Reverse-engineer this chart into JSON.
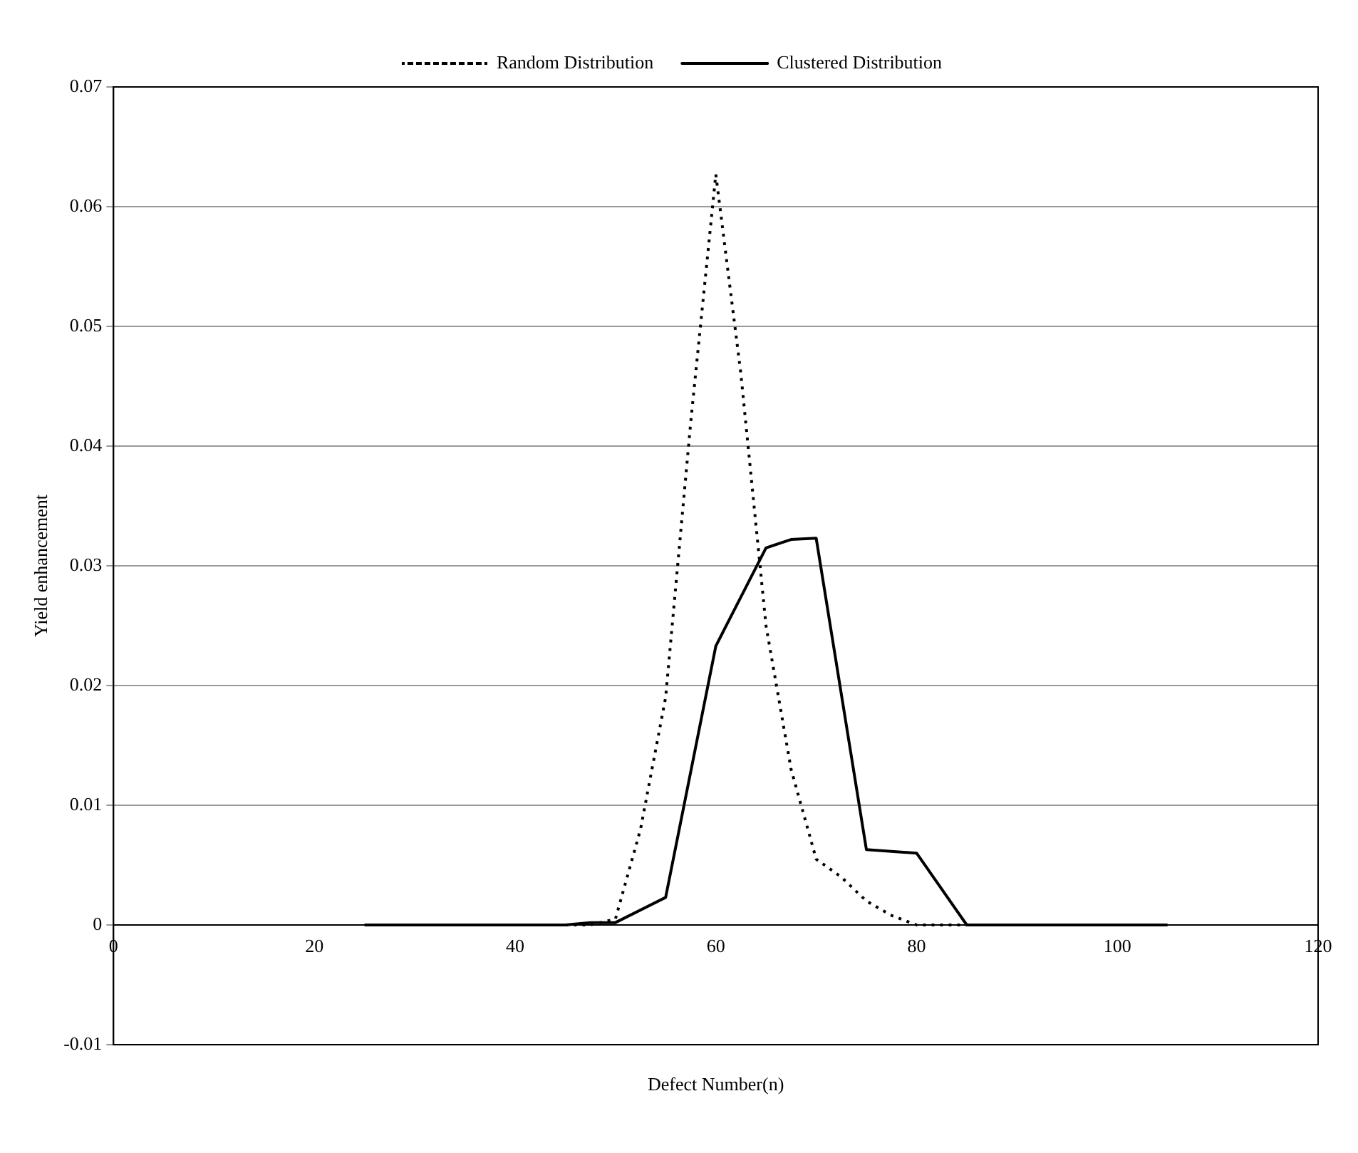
{
  "chart_data": {
    "type": "line",
    "xlabel": "Defect Number(n)",
    "ylabel": "Yield enhancement",
    "xlim": [
      0,
      120
    ],
    "xticks": [
      0,
      20,
      40,
      60,
      80,
      100,
      120
    ],
    "ylim": [
      -0.01,
      0.07
    ],
    "yticks": [
      -0.01,
      0,
      0.01,
      0.02,
      0.03,
      0.04,
      0.05,
      0.06,
      0.07
    ],
    "grid": "y",
    "legend": "top",
    "marker": "none",
    "series": [
      {
        "name": "Random Distribution",
        "color": "#000000",
        "line_style": "dotted",
        "x": [
          45,
          47.5,
          50,
          52.5,
          55,
          57.5,
          60,
          62.5,
          65,
          67.5,
          70,
          72.5,
          75,
          77.5,
          80,
          85,
          90
        ],
        "values": [
          0,
          0,
          0.0005,
          0.008,
          0.019,
          0.042,
          0.0627,
          0.046,
          0.025,
          0.013,
          0.0055,
          0.004,
          0.002,
          0.0008,
          0,
          0,
          0
        ]
      },
      {
        "name": "Clustered Distribution",
        "color": "#000000",
        "line_style": "solid",
        "x": [
          25,
          45,
          47.5,
          50,
          55,
          60,
          65,
          67.5,
          70,
          75,
          80,
          85,
          105
        ],
        "values": [
          0,
          0,
          0.0002,
          0.0002,
          0.0023,
          0.0233,
          0.0315,
          0.0322,
          0.0323,
          0.0063,
          0.006,
          0,
          0
        ]
      }
    ]
  }
}
